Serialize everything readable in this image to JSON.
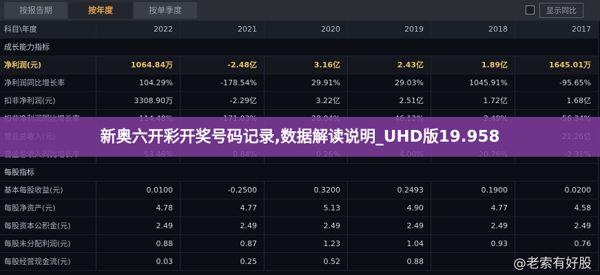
{
  "tabs": [
    "按报告期",
    "按年度",
    "按单季度"
  ],
  "active_tab": 1,
  "toggle_label": "显示同比",
  "table": {
    "header": [
      "科目\\年度",
      "2022",
      "2021",
      "2020",
      "2019",
      "2018",
      "2017"
    ],
    "rows": [
      {
        "label": "成长能力指标",
        "section": true
      },
      {
        "label": "净利润(元)",
        "highlight": true,
        "values": [
          "1064.84万",
          "-2.48亿",
          "3.16亿",
          "2.43亿",
          "1.89亿",
          "1645.01万"
        ]
      },
      {
        "label": "净利润同比增长率",
        "values": [
          "104.29%",
          "-178.54%",
          "29.91%",
          "29.03%",
          "1045.91%",
          "-95.65%"
        ]
      },
      {
        "label": "扣非净利润(元)",
        "values": [
          "3308.90万",
          "-2.29亿",
          "3.22亿",
          "2.51亿",
          "1.72亿",
          "1.68亿"
        ]
      },
      {
        "label": "扣非净利润同比增长率",
        "values": [
          "114.48%",
          "-171.03%",
          "28.04%",
          "46.12%",
          "2.49%",
          "-56.34%"
        ]
      },
      {
        "label": "营业总收入(元)",
        "values": [
          null,
          null,
          null,
          null,
          null,
          "21.26亿"
        ]
      },
      {
        "label": "营业总收入同比增长率",
        "values": [
          "53.46%",
          "0.84%",
          "0.26%",
          "4.00%",
          "20.76%",
          "-2.31%"
        ]
      },
      {
        "label": "每股指标",
        "section": true
      },
      {
        "label": "基本每股收益(元)",
        "values": [
          "0.0100",
          "-0.2500",
          "0.3200",
          "0.2493",
          "0.1900",
          "0.0200"
        ]
      },
      {
        "label": "每股净资产(元)",
        "values": [
          "4.78",
          "4.77",
          "5.13",
          "4.90",
          "4.77",
          "4.58"
        ]
      },
      {
        "label": "每股资本公积金(元)",
        "values": [
          "2.49",
          "2.49",
          "2.49",
          "2.49",
          "2.49",
          "2.49"
        ]
      },
      {
        "label": "每股未分配利润(元)",
        "values": [
          "0.88",
          "0.87",
          "1.23",
          "1.04",
          "0.93",
          "0.76"
        ]
      },
      {
        "label": "每股经营现金流(元)",
        "values": [
          "0.03",
          "0.25",
          "0.52",
          "0.88",
          null,
          null
        ]
      }
    ]
  },
  "banner": "新奥六开彩开奖号码记录,数据解读说明_UHD版19.958",
  "watermark": "@老索有好股"
}
